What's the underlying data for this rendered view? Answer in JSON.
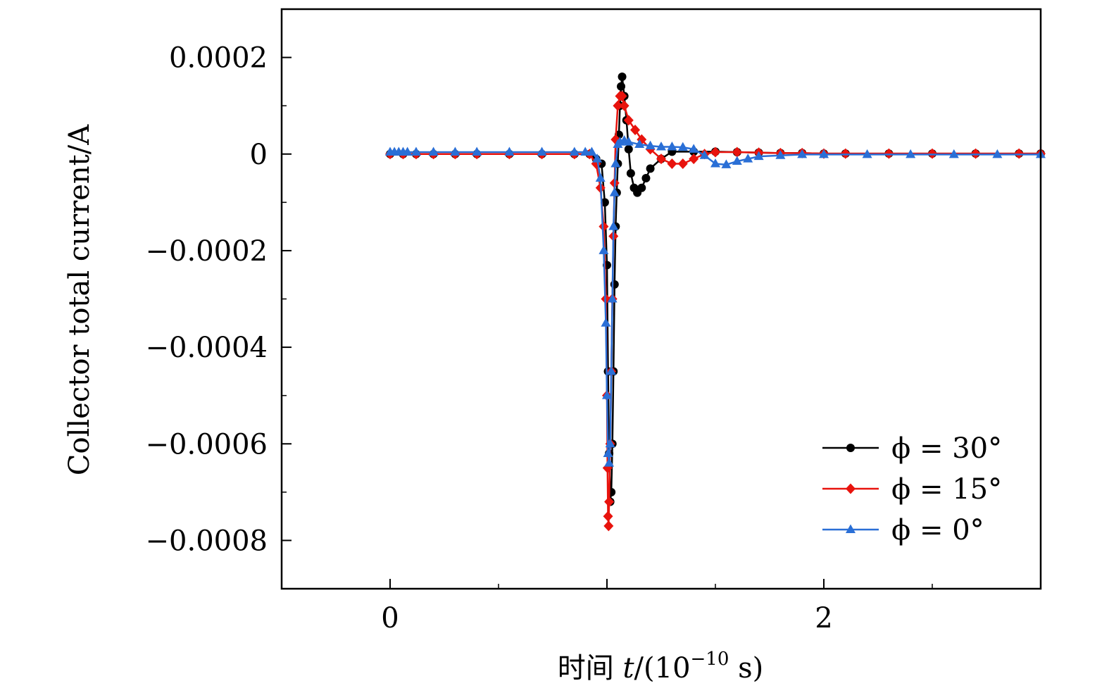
{
  "chart_data": {
    "type": "line",
    "title": "",
    "xlabel": "时间 t/(10⁻¹⁰ s)",
    "xlabel_parts": {
      "prefix": "时间 ",
      "var": "t",
      "unit_open": "/(10",
      "exponent": "−10",
      "unit_close": " s)"
    },
    "ylabel": "Collector total current/A",
    "xlim": [
      -0.5,
      3.0
    ],
    "ylim": [
      -0.0009,
      0.0003
    ],
    "xticks": [
      {
        "value": 0,
        "label": "0"
      },
      {
        "value": 1,
        "label": ""
      },
      {
        "value": 2,
        "label": "2"
      }
    ],
    "yticks": [
      {
        "value": 0.0002,
        "label": "0.0002"
      },
      {
        "value": 0,
        "label": "0"
      },
      {
        "value": -0.0002,
        "label": "−0.0002"
      },
      {
        "value": -0.0004,
        "label": "−0.0004"
      },
      {
        "value": -0.0006,
        "label": "−0.0006"
      },
      {
        "value": -0.0008,
        "label": "−0.0008"
      }
    ],
    "grid": false,
    "legend_position": "bottom-right",
    "series": [
      {
        "name": "ϕ = 30°",
        "color": "#000000",
        "marker": "circle",
        "points": [
          [
            0.0,
            0
          ],
          [
            0.06,
            0
          ],
          [
            0.12,
            0
          ],
          [
            0.2,
            0
          ],
          [
            0.3,
            0
          ],
          [
            0.4,
            0
          ],
          [
            0.55,
            0
          ],
          [
            0.7,
            0
          ],
          [
            0.85,
            0
          ],
          [
            0.92,
            0
          ],
          [
            0.95,
            -1e-05
          ],
          [
            0.975,
            -2e-05
          ],
          [
            0.99,
            -0.0001
          ],
          [
            1.0,
            -0.00023
          ],
          [
            1.005,
            -0.00045
          ],
          [
            1.01,
            -0.00062
          ],
          [
            1.015,
            -0.00072
          ],
          [
            1.02,
            -0.0007
          ],
          [
            1.025,
            -0.0006
          ],
          [
            1.03,
            -0.00045
          ],
          [
            1.035,
            -0.00027
          ],
          [
            1.04,
            -0.00015
          ],
          [
            1.045,
            -8e-05
          ],
          [
            1.05,
            -2e-05
          ],
          [
            1.055,
            4e-05
          ],
          [
            1.06,
            0.0001
          ],
          [
            1.065,
            0.00014
          ],
          [
            1.07,
            0.00016
          ],
          [
            1.08,
            0.00012
          ],
          [
            1.09,
            7e-05
          ],
          [
            1.1,
            1e-05
          ],
          [
            1.11,
            -4e-05
          ],
          [
            1.125,
            -7e-05
          ],
          [
            1.14,
            -8e-05
          ],
          [
            1.16,
            -7e-05
          ],
          [
            1.18,
            -5e-05
          ],
          [
            1.2,
            -3e-05
          ],
          [
            1.25,
            -1e-05
          ],
          [
            1.3,
            5e-06
          ],
          [
            1.4,
            5e-06
          ],
          [
            1.5,
            5e-06
          ],
          [
            1.6,
            4e-06
          ],
          [
            1.7,
            3e-06
          ],
          [
            1.8,
            2e-06
          ],
          [
            1.9,
            2e-06
          ],
          [
            2.0,
            1e-06
          ],
          [
            2.1,
            1e-06
          ],
          [
            2.3,
            1e-06
          ],
          [
            2.5,
            1e-06
          ],
          [
            2.7,
            1e-06
          ],
          [
            2.9,
            1e-06
          ],
          [
            3.0,
            1e-06
          ]
        ]
      },
      {
        "name": "ϕ = 15°",
        "color": "#e8130d",
        "marker": "diamond",
        "points": [
          [
            0.0,
            0
          ],
          [
            0.06,
            0
          ],
          [
            0.12,
            0
          ],
          [
            0.2,
            0
          ],
          [
            0.3,
            0
          ],
          [
            0.4,
            0
          ],
          [
            0.55,
            0
          ],
          [
            0.7,
            0
          ],
          [
            0.85,
            0
          ],
          [
            0.92,
            0
          ],
          [
            0.95,
            -2e-05
          ],
          [
            0.97,
            -7e-05
          ],
          [
            0.985,
            -0.00015
          ],
          [
            0.995,
            -0.0003
          ],
          [
            1.0,
            -0.0005
          ],
          [
            1.0025,
            -0.00065
          ],
          [
            1.005,
            -0.00075
          ],
          [
            1.0075,
            -0.00077
          ],
          [
            1.01,
            -0.00072
          ],
          [
            1.015,
            -0.0006
          ],
          [
            1.02,
            -0.00045
          ],
          [
            1.025,
            -0.0003
          ],
          [
            1.03,
            -0.00017
          ],
          [
            1.035,
            -6e-05
          ],
          [
            1.04,
            3e-05
          ],
          [
            1.05,
            0.0001
          ],
          [
            1.06,
            0.00012
          ],
          [
            1.07,
            0.00012
          ],
          [
            1.08,
            0.0001
          ],
          [
            1.1,
            7e-05
          ],
          [
            1.13,
            5e-05
          ],
          [
            1.16,
            3e-05
          ],
          [
            1.2,
            1e-05
          ],
          [
            1.25,
            -1e-05
          ],
          [
            1.3,
            -2e-05
          ],
          [
            1.35,
            -2e-05
          ],
          [
            1.4,
            -1e-05
          ],
          [
            1.45,
            0
          ],
          [
            1.5,
            4e-06
          ],
          [
            1.6,
            4e-06
          ],
          [
            1.7,
            3e-06
          ],
          [
            1.8,
            2e-06
          ],
          [
            1.9,
            2e-06
          ],
          [
            2.0,
            1e-06
          ],
          [
            2.1,
            1e-06
          ],
          [
            2.3,
            1e-06
          ],
          [
            2.5,
            1e-06
          ],
          [
            2.7,
            1e-06
          ],
          [
            2.9,
            1e-06
          ],
          [
            3.0,
            1e-06
          ]
        ]
      },
      {
        "name": "ϕ = 0°",
        "color": "#2a6fd6",
        "marker": "triangle",
        "points": [
          [
            0.0,
            4e-06
          ],
          [
            0.02,
            4e-06
          ],
          [
            0.04,
            4e-06
          ],
          [
            0.06,
            4e-06
          ],
          [
            0.08,
            4e-06
          ],
          [
            0.12,
            4e-06
          ],
          [
            0.2,
            4e-06
          ],
          [
            0.3,
            4e-06
          ],
          [
            0.4,
            4e-06
          ],
          [
            0.55,
            4e-06
          ],
          [
            0.7,
            4e-06
          ],
          [
            0.85,
            4e-06
          ],
          [
            0.9,
            4e-06
          ],
          [
            0.93,
            4e-06
          ],
          [
            0.955,
            -1e-05
          ],
          [
            0.97,
            -5e-05
          ],
          [
            0.985,
            -0.0002
          ],
          [
            0.995,
            -0.00035
          ],
          [
            1.0,
            -0.0005
          ],
          [
            1.005,
            -0.00062
          ],
          [
            1.01,
            -0.00064
          ],
          [
            1.015,
            -0.0006
          ],
          [
            1.02,
            -0.00045
          ],
          [
            1.025,
            -0.0003
          ],
          [
            1.03,
            -0.00015
          ],
          [
            1.035,
            -8e-05
          ],
          [
            1.04,
            -2e-05
          ],
          [
            1.05,
            2e-05
          ],
          [
            1.06,
            2.5e-05
          ],
          [
            1.08,
            2.8e-05
          ],
          [
            1.1,
            2.5e-05
          ],
          [
            1.15,
            2e-05
          ],
          [
            1.2,
            1.7e-05
          ],
          [
            1.25,
            1.5e-05
          ],
          [
            1.3,
            1.5e-05
          ],
          [
            1.35,
            1.4e-05
          ],
          [
            1.4,
            1e-05
          ],
          [
            1.45,
            -3e-06
          ],
          [
            1.5,
            -2e-05
          ],
          [
            1.55,
            -2.2e-05
          ],
          [
            1.6,
            -1.5e-05
          ],
          [
            1.65,
            -1e-05
          ],
          [
            1.7,
            -5e-06
          ],
          [
            1.8,
            -3e-06
          ],
          [
            1.9,
            -1e-06
          ],
          [
            2.0,
            -1e-06
          ],
          [
            2.2,
            -1e-06
          ],
          [
            2.4,
            -1e-06
          ],
          [
            2.6,
            -1e-06
          ],
          [
            2.8,
            -1e-06
          ],
          [
            3.0,
            -1e-06
          ]
        ]
      }
    ]
  }
}
